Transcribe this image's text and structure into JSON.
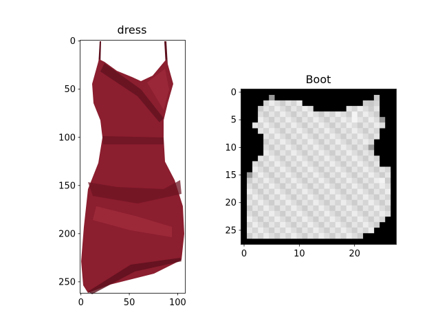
{
  "chart_data": [
    {
      "type": "image",
      "title": "dress",
      "image_description": "photo of a dark red satin wrap dress with spaghetti straps on a white background",
      "image_size": {
        "width": 108,
        "height": 262
      },
      "xlim": [
        -0.5,
        107.5
      ],
      "ylim": [
        261.5,
        -0.5
      ],
      "xticks": [
        0,
        50,
        100
      ],
      "yticks": [
        0,
        50,
        100,
        150,
        200,
        250
      ],
      "colors": {
        "dress": "#8b1e2f",
        "dress_dark": "#5c0f1d",
        "dress_light": "#a8303f",
        "background": "#ffffff"
      }
    },
    {
      "type": "heatmap",
      "title": "Boot",
      "colormap": "gray",
      "image_size": {
        "width": 28,
        "height": 28
      },
      "xlim": [
        -0.5,
        27.5
      ],
      "ylim": [
        27.5,
        -0.5
      ],
      "xticks": [
        0,
        10,
        20
      ],
      "yticks": [
        0,
        5,
        10,
        15,
        20,
        25
      ],
      "image_description": "28x28 grayscale image of a light gray dress-shaped garment on a black background",
      "rows": [
        "............................",
        ".....:..................=...",
        "....#######...........#=#...",
        "...##########......######...",
        "...#################O####...",
        "...#################O####:..",
        "..########################..",
        "...######################...",
        "....#####################...",
        "....####################....",
        "....###################:....",
        "....####################....",
        "...######################...",
        "..#######################...",
        "..#########################.",
        ".:#########################.",
        ".########################O#.",
        ".##########################.",
        ".##########################.",
        ".##########################.",
        ".##########################.",
        ".##########################.",
        ".##########################.",
        ".#########################..",
        ".########################...",
        ".#######################....",
        ".#####################......",
        "............................"
      ]
    }
  ]
}
